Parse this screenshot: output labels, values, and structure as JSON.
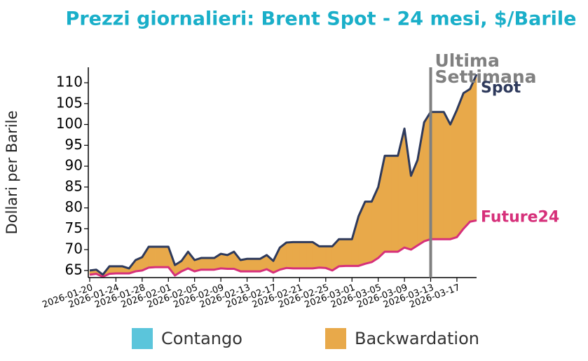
{
  "chart_data": {
    "type": "line",
    "title": "Prezzi giornalieri: Brent Spot - 24 mesi, $/Barile",
    "y_label": "Dollari per Barile",
    "x": [
      "2026-01-20",
      "2026-01-21",
      "2026-01-22",
      "2026-01-23",
      "2026-01-24",
      "2026-01-25",
      "2026-01-26",
      "2026-01-27",
      "2026-01-28",
      "2026-01-29",
      "2026-01-30",
      "2026-01-31",
      "2026-02-01",
      "2026-02-02",
      "2026-02-03",
      "2026-02-04",
      "2026-02-05",
      "2026-02-06",
      "2026-02-07",
      "2026-02-08",
      "2026-02-09",
      "2026-02-10",
      "2026-02-11",
      "2026-02-12",
      "2026-02-13",
      "2026-02-14",
      "2026-02-15",
      "2026-02-16",
      "2026-02-17",
      "2026-02-18",
      "2026-02-19",
      "2026-02-20",
      "2026-02-21",
      "2026-02-22",
      "2026-02-23",
      "2026-02-24",
      "2026-02-25",
      "2026-02-26",
      "2026-02-27",
      "2026-02-28",
      "2026-03-01",
      "2026-03-02",
      "2026-03-03",
      "2026-03-04",
      "2026-03-05",
      "2026-03-06",
      "2026-03-07",
      "2026-03-08",
      "2026-03-09",
      "2026-03-10",
      "2026-03-11",
      "2026-03-12",
      "2026-03-13",
      "2026-03-14",
      "2026-03-15",
      "2026-03-16",
      "2026-03-17",
      "2026-03-18",
      "2026-03-19",
      "2026-03-20"
    ],
    "series": [
      {
        "name": "Spot",
        "color": "#2e3a5c",
        "values": [
          65,
          65.2,
          64,
          66,
          66,
          66,
          65.5,
          67.5,
          68.2,
          70.7,
          70.7,
          70.7,
          70.7,
          66.3,
          67.3,
          69.5,
          67.5,
          68,
          68,
          68,
          69,
          68.7,
          69.5,
          67.5,
          67.8,
          67.8,
          67.8,
          68.7,
          67.3,
          70.5,
          71.7,
          71.8,
          71.8,
          71.8,
          71.8,
          70.8,
          70.8,
          70.8,
          72.5,
          72.5,
          72.5,
          78,
          81.5,
          81.5,
          85,
          92.5,
          92.5,
          92.5,
          99,
          87.7,
          91.5,
          100.5,
          103,
          103,
          103,
          100,
          103.5,
          107.5,
          108.5,
          112
        ]
      },
      {
        "name": "Future24",
        "color": "#d6307a",
        "values": [
          64,
          64.2,
          63.5,
          64.2,
          64.3,
          64.3,
          64.3,
          64.8,
          65,
          65.7,
          65.8,
          65.8,
          65.8,
          63.8,
          64.8,
          65.5,
          64.8,
          65.2,
          65.2,
          65.2,
          65.5,
          65.4,
          65.4,
          64.8,
          64.8,
          64.8,
          64.8,
          65.3,
          64.5,
          65.2,
          65.6,
          65.5,
          65.5,
          65.5,
          65.5,
          65.7,
          65.6,
          65,
          66,
          66.1,
          66.1,
          66.1,
          66.6,
          67,
          68,
          69.5,
          69.5,
          69.5,
          70.5,
          70,
          71,
          72,
          72.5,
          72.5,
          72.5,
          72.5,
          73,
          75,
          76.7,
          77
        ]
      }
    ],
    "fills": [
      {
        "name": "Contango",
        "color": "#5bc5db"
      },
      {
        "name": "Backwardation",
        "color": "#e8a94a"
      }
    ],
    "marker": {
      "x": "2026-03-13",
      "label_lines": [
        "Ultima",
        "Settimana"
      ],
      "color": "#808080"
    },
    "xlim": [
      "2026-01-20",
      "2026-03-20"
    ],
    "xticks": [
      "2026-01-20",
      "2026-01-24",
      "2026-01-28",
      "2026-02-01",
      "2026-02-05",
      "2026-02-09",
      "2026-02-13",
      "2026-02-17",
      "2026-02-21",
      "2026-02-25",
      "2026-03-01",
      "2026-03-05",
      "2026-03-09",
      "2026-03-13",
      "2026-03-17"
    ],
    "ylim": [
      63.3,
      113.7
    ],
    "yticks": [
      65,
      70,
      75,
      80,
      85,
      90,
      95,
      100,
      105,
      110
    ],
    "grid": false
  }
}
